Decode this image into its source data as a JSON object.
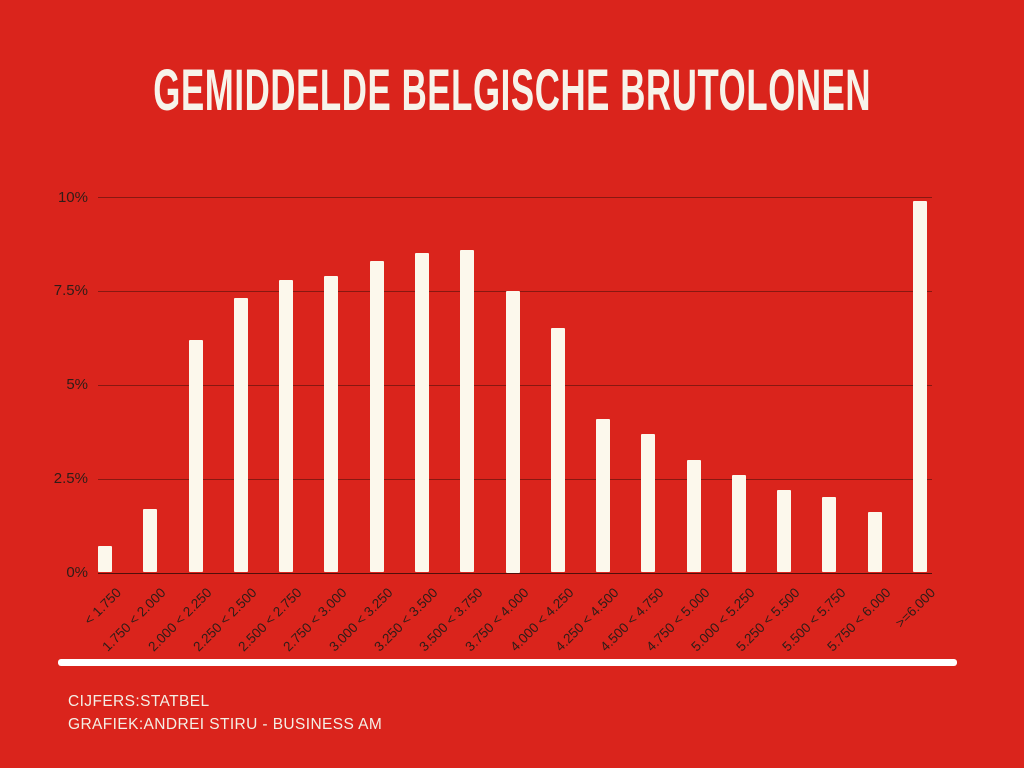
{
  "title": "GEMIDDELDE BELGISCHE BRUTOLONEN",
  "source": {
    "line1": "CIJFERS:STATBEL",
    "line2": "GRAFIEK:ANDREI STIRU - BUSINESS AM"
  },
  "colors": {
    "background": "#da241c",
    "bar": "#fcf8ec",
    "title_text": "#f7f3ea",
    "axis_text": "#2f1d18",
    "gridline": "rgba(70,15,10,0.55)",
    "axis_line": "rgba(45,10,8,0.8)",
    "separator": "#ffffff",
    "source_text": "#f4efe6"
  },
  "chart_data": {
    "type": "bar",
    "title": "GEMIDDELDE BELGISCHE BRUTOLONEN",
    "categories": [
      "< 1.750",
      "1.750 < 2.000",
      "2.000 < 2.250",
      "2.250 < 2.500",
      "2.500 < 2.750",
      "2.750 < 3.000",
      "3.000 < 3.250",
      "3.250 < 3.500",
      "3.500 < 3.750",
      "3.750 < 4.000",
      "4.000 < 4.250",
      "4.250 < 4.500",
      "4.500 < 4.750",
      "4.750 < 5.000",
      "5.000 < 5.250",
      "5.250 < 5.500",
      "5.500 < 5.750",
      "5.750 < 6.000",
      ">=6.000"
    ],
    "values": [
      0.7,
      1.7,
      6.2,
      7.3,
      7.8,
      7.9,
      8.3,
      8.5,
      8.6,
      7.5,
      6.5,
      4.1,
      3.7,
      3.0,
      2.6,
      2.2,
      2.0,
      1.6,
      9.9
    ],
    "xlabel": "",
    "ylabel": "",
    "ylim": [
      0,
      10
    ],
    "yticks": [
      "0%",
      "2.5%",
      "5%",
      "7.5%",
      "10%"
    ],
    "ytick_values": [
      0,
      2.5,
      5,
      7.5,
      10
    ],
    "grid": true,
    "legend": false
  }
}
